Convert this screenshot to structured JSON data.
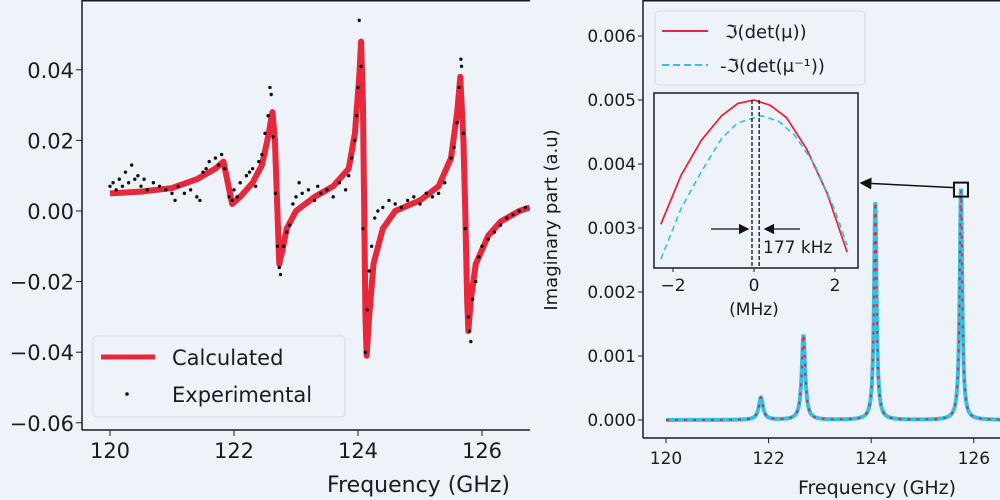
{
  "colors": {
    "background": "#eef2f9",
    "calculated": "#e8283a",
    "experimental": "#111111",
    "inverse": "#2ec4ea",
    "axes": "#1a1a22"
  },
  "chart_data": [
    {
      "type": "line",
      "panel": "left",
      "xlabel": "Frequency (GHz)",
      "ylabel": "",
      "xlim": [
        119.55,
        126.77
      ],
      "ylim": [
        -0.062,
        0.06
      ],
      "xticks": [
        "120",
        "122",
        "124",
        "126"
      ],
      "xtick_values": [
        120,
        122,
        124,
        126
      ],
      "yticks": [
        "0.04",
        "0.02",
        "0.00",
        "−0.02",
        "−0.04",
        "−0.06"
      ],
      "ytick_values": [
        0.04,
        0.02,
        0.0,
        -0.02,
        -0.04,
        -0.06
      ],
      "grid": false,
      "legend": {
        "position": "bottom-left",
        "entries": [
          "Calculated",
          "Experimental"
        ]
      },
      "series": [
        {
          "name": "Calculated",
          "style": "line",
          "points": [
            [
              120.0,
              0.005
            ],
            [
              120.5,
              0.0055
            ],
            [
              121.0,
              0.0065
            ],
            [
              121.4,
              0.009
            ],
            [
              121.7,
              0.012
            ],
            [
              121.83,
              0.014
            ],
            [
              121.9,
              0.008
            ],
            [
              121.97,
              0.002
            ],
            [
              122.1,
              0.004
            ],
            [
              122.3,
              0.008
            ],
            [
              122.45,
              0.013
            ],
            [
              122.55,
              0.021
            ],
            [
              122.62,
              0.028
            ],
            [
              122.66,
              0.02
            ],
            [
              122.7,
              0.0
            ],
            [
              122.73,
              -0.015
            ],
            [
              122.77,
              -0.012
            ],
            [
              122.85,
              -0.005
            ],
            [
              123.0,
              0.0
            ],
            [
              123.3,
              0.004
            ],
            [
              123.6,
              0.007
            ],
            [
              123.85,
              0.012
            ],
            [
              123.95,
              0.022
            ],
            [
              124.02,
              0.038
            ],
            [
              124.05,
              0.048
            ],
            [
              124.08,
              0.03
            ],
            [
              124.1,
              0.0
            ],
            [
              124.12,
              -0.03
            ],
            [
              124.14,
              -0.041
            ],
            [
              124.18,
              -0.03
            ],
            [
              124.25,
              -0.015
            ],
            [
              124.4,
              -0.005
            ],
            [
              124.6,
              0.0
            ],
            [
              125.0,
              0.003
            ],
            [
              125.3,
              0.007
            ],
            [
              125.5,
              0.015
            ],
            [
              125.6,
              0.028
            ],
            [
              125.65,
              0.038
            ],
            [
              125.7,
              0.02
            ],
            [
              125.73,
              0.0
            ],
            [
              125.76,
              -0.025
            ],
            [
              125.78,
              -0.034
            ],
            [
              125.82,
              -0.025
            ],
            [
              125.9,
              -0.015
            ],
            [
              126.1,
              -0.007
            ],
            [
              126.3,
              -0.003
            ],
            [
              126.6,
              0.0
            ],
            [
              126.77,
              0.001
            ]
          ]
        },
        {
          "name": "Experimental",
          "style": "scatter",
          "points": [
            [
              120.0,
              0.007
            ],
            [
              120.05,
              0.008
            ],
            [
              120.1,
              0.006
            ],
            [
              120.15,
              0.009
            ],
            [
              120.2,
              0.007
            ],
            [
              120.25,
              0.011
            ],
            [
              120.3,
              0.008
            ],
            [
              120.35,
              0.013
            ],
            [
              120.4,
              0.009
            ],
            [
              120.45,
              0.01
            ],
            [
              120.5,
              0.007
            ],
            [
              120.55,
              0.009
            ],
            [
              120.6,
              0.006
            ],
            [
              120.7,
              0.008
            ],
            [
              120.8,
              0.007
            ],
            [
              120.9,
              0.006
            ],
            [
              121.0,
              0.005
            ],
            [
              121.05,
              0.003
            ],
            [
              121.1,
              0.007
            ],
            [
              121.2,
              0.005
            ],
            [
              121.3,
              0.006
            ],
            [
              121.4,
              0.004
            ],
            [
              121.45,
              0.003
            ],
            [
              121.5,
              0.011
            ],
            [
              121.55,
              0.012
            ],
            [
              121.6,
              0.014
            ],
            [
              121.7,
              0.015
            ],
            [
              121.75,
              0.013
            ],
            [
              121.8,
              0.016
            ],
            [
              121.85,
              0.012
            ],
            [
              121.92,
              0.004
            ],
            [
              121.97,
              0.003
            ],
            [
              122.0,
              0.006
            ],
            [
              122.05,
              0.004
            ],
            [
              122.1,
              0.008
            ],
            [
              122.2,
              0.01
            ],
            [
              122.25,
              0.011
            ],
            [
              122.3,
              0.012
            ],
            [
              122.35,
              0.007
            ],
            [
              122.4,
              0.014
            ],
            [
              122.45,
              0.016
            ],
            [
              122.5,
              0.022
            ],
            [
              122.55,
              0.027
            ],
            [
              122.58,
              0.035
            ],
            [
              122.6,
              0.033
            ],
            [
              122.63,
              0.021
            ],
            [
              122.67,
              0.005
            ],
            [
              122.7,
              -0.01
            ],
            [
              122.73,
              -0.016
            ],
            [
              122.75,
              -0.018
            ],
            [
              122.8,
              -0.01
            ],
            [
              122.85,
              -0.006
            ],
            [
              122.9,
              -0.004
            ],
            [
              122.95,
              0.002
            ],
            [
              123.0,
              0.004
            ],
            [
              123.05,
              0.008
            ],
            [
              123.1,
              0.005
            ],
            [
              123.2,
              0.006
            ],
            [
              123.3,
              0.003
            ],
            [
              123.35,
              0.007
            ],
            [
              123.4,
              0.005
            ],
            [
              123.5,
              0.006
            ],
            [
              123.6,
              0.004
            ],
            [
              123.7,
              0.008
            ],
            [
              123.8,
              0.006
            ],
            [
              123.85,
              0.01
            ],
            [
              123.9,
              0.015
            ],
            [
              123.95,
              0.02
            ],
            [
              123.98,
              0.027
            ],
            [
              124.0,
              0.035
            ],
            [
              124.02,
              0.054
            ],
            [
              124.05,
              0.041
            ],
            [
              124.08,
              -0.005
            ],
            [
              124.12,
              -0.04
            ],
            [
              124.15,
              -0.028
            ],
            [
              124.18,
              -0.017
            ],
            [
              124.22,
              -0.01
            ],
            [
              124.27,
              -0.002
            ],
            [
              124.32,
              0.0
            ],
            [
              124.4,
              0.001
            ],
            [
              124.5,
              0.003
            ],
            [
              124.6,
              0.002
            ],
            [
              124.7,
              0.001
            ],
            [
              124.8,
              0.003
            ],
            [
              124.9,
              0.004
            ],
            [
              125.0,
              0.002
            ],
            [
              125.1,
              0.005
            ],
            [
              125.2,
              0.004
            ],
            [
              125.3,
              0.005
            ],
            [
              125.4,
              0.008
            ],
            [
              125.5,
              0.015
            ],
            [
              125.55,
              0.018
            ],
            [
              125.6,
              0.025
            ],
            [
              125.63,
              0.035
            ],
            [
              125.66,
              0.043
            ],
            [
              125.67,
              0.041
            ],
            [
              125.7,
              0.022
            ],
            [
              125.73,
              -0.005
            ],
            [
              125.78,
              -0.03
            ],
            [
              125.8,
              -0.034
            ],
            [
              125.82,
              -0.037
            ],
            [
              125.85,
              -0.025
            ],
            [
              125.9,
              -0.02
            ],
            [
              125.95,
              -0.013
            ],
            [
              126.0,
              -0.01
            ],
            [
              126.1,
              -0.008
            ],
            [
              126.2,
              -0.006
            ],
            [
              126.3,
              -0.004
            ],
            [
              126.4,
              -0.002
            ],
            [
              126.5,
              -0.001
            ],
            [
              126.6,
              0.0
            ],
            [
              126.7,
              0.001
            ]
          ]
        }
      ]
    },
    {
      "type": "line",
      "panel": "right",
      "xlabel": "Frequency (GHz)",
      "ylabel": "Imaginary part (a.u)",
      "xlim": [
        119.55,
        126.6
      ],
      "ylim": [
        -0.0003,
        0.0066
      ],
      "xticks": [
        "120",
        "122",
        "124",
        "126"
      ],
      "xtick_values": [
        120,
        122,
        124,
        126
      ],
      "yticks": [
        "0.006",
        "0.005",
        "0.004",
        "0.003",
        "0.002",
        "0.001",
        "0.000"
      ],
      "ytick_values": [
        0.006,
        0.005,
        0.004,
        0.003,
        0.002,
        0.001,
        0.0
      ],
      "grid": false,
      "legend": {
        "position": "top-left",
        "entries": [
          "ℑ(det(μ))",
          "-ℑ(det(μ⁻¹))"
        ]
      },
      "lorentzian_peaks_GHz": [
        {
          "center": 121.85,
          "height": 0.00035,
          "hwhm": 0.05
        },
        {
          "center": 122.68,
          "height": 0.00133,
          "hwhm": 0.04
        },
        {
          "center": 124.08,
          "height": 0.0034,
          "hwhm": 0.03
        },
        {
          "center": 125.75,
          "height": 0.0036,
          "hwhm": 0.03
        }
      ],
      "series": [
        {
          "name": "ℑ(det(μ))",
          "style": "solid"
        },
        {
          "name": "-ℑ(det(μ⁻¹))",
          "style": "dashed"
        }
      ],
      "zoom_marker_center": [
        125.75,
        0.0036
      ],
      "inset": {
        "xlabel": "(MHz)",
        "xlim": [
          -2.47,
          2.57
        ],
        "ylim": [
          0,
          1
        ],
        "xticks": [
          "−2",
          "0",
          "2"
        ],
        "xtick_values": [
          -2,
          0,
          2
        ],
        "annotation": "177 kHz",
        "peak_positions_MHz": [
          0.0,
          0.177
        ],
        "series": [
          {
            "name": "ℑ(det(μ))",
            "points": [
              [
                -2.3,
                0.25
              ],
              [
                -1.8,
                0.53
              ],
              [
                -1.3,
                0.73
              ],
              [
                -0.8,
                0.87
              ],
              [
                -0.4,
                0.94
              ],
              [
                0,
                0.96
              ],
              [
                0.4,
                0.93
              ],
              [
                0.8,
                0.86
              ],
              [
                1.3,
                0.68
              ],
              [
                1.8,
                0.43
              ],
              [
                2.3,
                0.09
              ]
            ]
          },
          {
            "name": "-ℑ(det(μ⁻¹))",
            "points": [
              [
                -2.3,
                0.05
              ],
              [
                -1.8,
                0.34
              ],
              [
                -1.3,
                0.55
              ],
              [
                -0.8,
                0.74
              ],
              [
                -0.4,
                0.83
              ],
              [
                0.177,
                0.87
              ],
              [
                0.6,
                0.84
              ],
              [
                1.0,
                0.76
              ],
              [
                1.5,
                0.59
              ],
              [
                2.0,
                0.33
              ],
              [
                2.3,
                0.13
              ]
            ]
          }
        ]
      }
    }
  ]
}
